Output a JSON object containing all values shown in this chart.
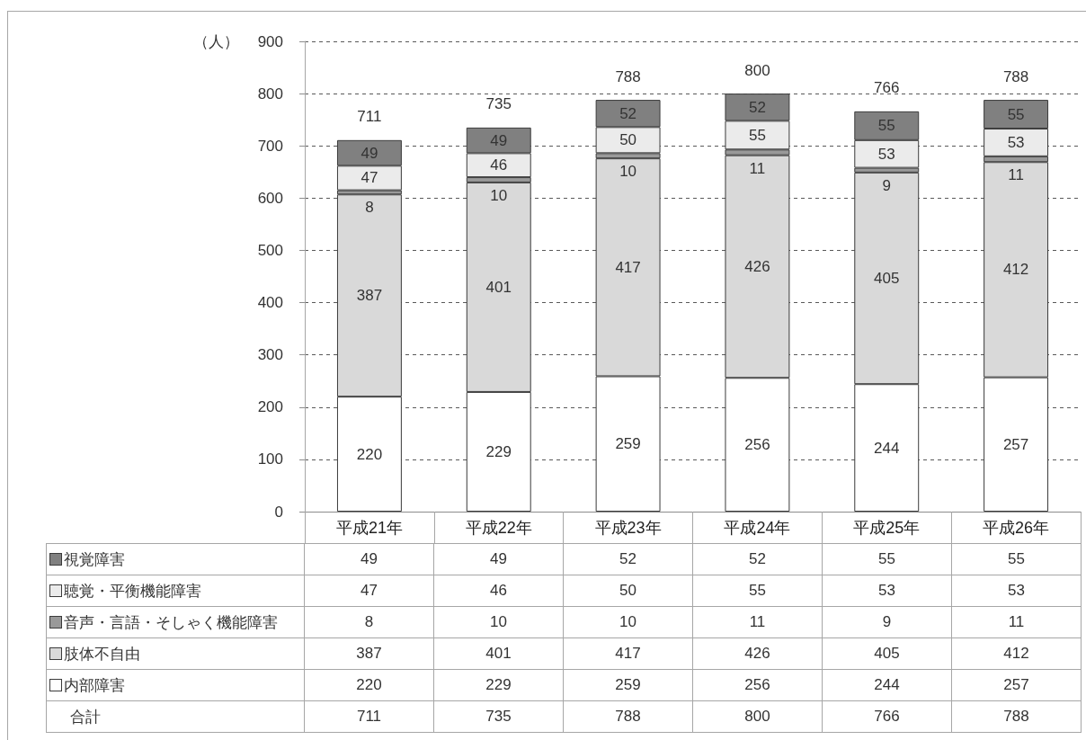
{
  "chart_data": {
    "type": "bar",
    "ylabel": "（人）",
    "categories": [
      "平成21年",
      "平成22年",
      "平成23年",
      "平成24年",
      "平成25年",
      "平成26年"
    ],
    "series": [
      {
        "name": "内部障害",
        "color": "#ffffff",
        "values": [
          220,
          229,
          259,
          256,
          244,
          257
        ],
        "value_labels": [
          "220",
          "229",
          "259",
          "256",
          "244",
          "257"
        ]
      },
      {
        "name": "肢体不自由",
        "color": "#d9d9d9",
        "values": [
          387,
          401,
          417,
          426,
          405,
          412
        ],
        "value_labels": [
          "387",
          "401",
          "417",
          "426",
          "405",
          "412"
        ]
      },
      {
        "name": "音声・言語・そしゃく機能障害",
        "color": "#999999",
        "values": [
          8,
          10,
          10,
          11,
          9,
          11
        ],
        "value_labels": [
          "8",
          "10",
          "10",
          "11",
          "9",
          "11"
        ]
      },
      {
        "name": "聴覚・平衡機能障害",
        "color": "#ebebeb",
        "values": [
          47,
          46,
          50,
          55,
          53,
          53
        ],
        "value_labels": [
          "47",
          "46",
          "50",
          "55",
          "53",
          "53"
        ]
      },
      {
        "name": "視覚障害",
        "color": "#808080",
        "values": [
          49,
          49,
          52,
          52,
          55,
          55
        ],
        "value_labels": [
          "49",
          "49",
          "52",
          "52",
          "55",
          "55"
        ]
      }
    ],
    "stacked": true,
    "ylim": [
      0,
      900
    ],
    "yticks": [
      0,
      100,
      200,
      300,
      400,
      500,
      600,
      700,
      800,
      900
    ],
    "grid": "y",
    "legend": "bottom left",
    "totals": [
      "711",
      "735",
      "788",
      "800",
      "766",
      "788"
    ],
    "annotations": [
      "合計"
    ]
  }
}
